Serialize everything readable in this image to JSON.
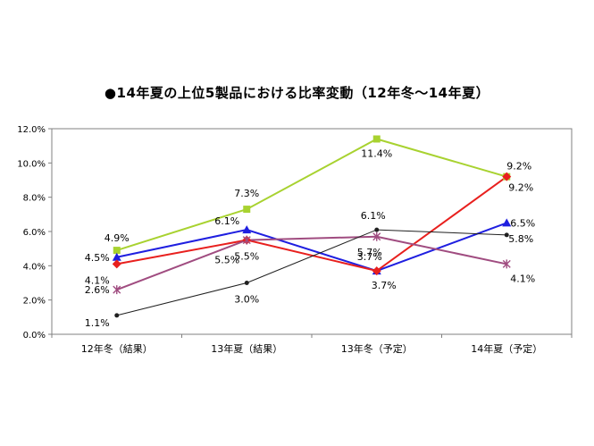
{
  "chart_data": {
    "type": "line",
    "title": "●14年夏の上位5製品における比率変動（12年冬～14年夏）",
    "xlabel": "",
    "ylabel": "",
    "categories": [
      "12年冬（結果）",
      "13年夏（結果）",
      "13年冬（予定）",
      "14年夏（予定）"
    ],
    "ylim": [
      0,
      12
    ],
    "yticks": [
      "0.0%",
      "2.0%",
      "4.0%",
      "6.0%",
      "8.0%",
      "10.0%",
      "12.0%"
    ],
    "grid": false,
    "legend": "none",
    "series": [
      {
        "color": "#a8d230",
        "marker": "square",
        "values": [
          4.9,
          7.3,
          11.4,
          9.2
        ],
        "labels": [
          "4.9%",
          "7.3%",
          "11.4%",
          "9.2%"
        ]
      },
      {
        "color": "#1f1fe0",
        "marker": "triangle",
        "values": [
          4.5,
          6.1,
          3.7,
          6.5
        ],
        "labels": [
          "4.5%",
          "6.1%",
          "3.7%",
          "6.5%"
        ]
      },
      {
        "color": "#e8201e",
        "marker": "diamond",
        "values": [
          4.1,
          5.5,
          3.7,
          9.2
        ],
        "labels": [
          "4.1%",
          "5.5%",
          "3.7%",
          "9.2%"
        ]
      },
      {
        "color": "#a04c80",
        "marker": "star",
        "values": [
          2.6,
          5.5,
          5.7,
          4.1
        ],
        "labels": [
          "2.6%",
          "5.5%",
          "5.7%",
          "4.1%"
        ]
      },
      {
        "color": "#202020",
        "marker": "dot",
        "values": [
          1.1,
          3.0,
          6.1,
          5.8
        ],
        "labels": [
          "1.1%",
          "3.0%",
          "6.1%",
          "5.8%"
        ]
      }
    ]
  }
}
